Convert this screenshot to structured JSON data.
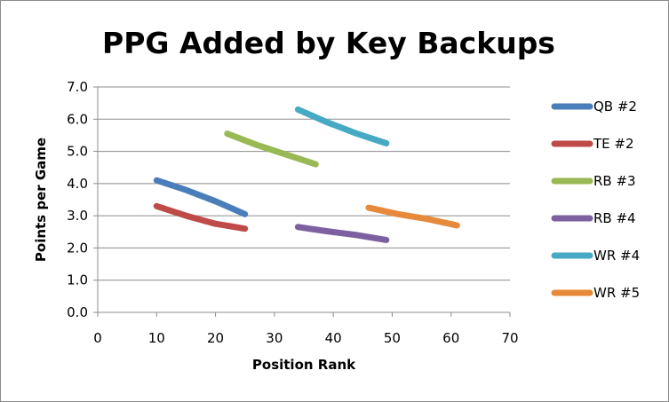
{
  "chart_data": {
    "type": "line",
    "title": "PPG Added by Key Backups",
    "xlabel": "Position Rank",
    "ylabel": "Points per Game",
    "xlim": [
      0,
      70
    ],
    "ylim": [
      0,
      7
    ],
    "x_ticks": [
      "0",
      "10",
      "20",
      "30",
      "40",
      "50",
      "60",
      "70"
    ],
    "y_ticks": [
      "0.0",
      "1.0",
      "2.0",
      "3.0",
      "4.0",
      "5.0",
      "6.0",
      "7.0"
    ],
    "grid": "horizontal",
    "legend_position": "right",
    "series": [
      {
        "name": "QB #2",
        "color": "#4a7ebb",
        "points": [
          [
            10,
            4.1
          ],
          [
            15,
            3.8
          ],
          [
            20,
            3.45
          ],
          [
            25,
            3.05
          ]
        ]
      },
      {
        "name": "TE #2",
        "color": "#be4b48",
        "points": [
          [
            10,
            3.3
          ],
          [
            15,
            3.0
          ],
          [
            20,
            2.75
          ],
          [
            25,
            2.6
          ]
        ]
      },
      {
        "name": "RB #3",
        "color": "#98b954",
        "points": [
          [
            22,
            5.55
          ],
          [
            27,
            5.2
          ],
          [
            32,
            4.9
          ],
          [
            37,
            4.6
          ]
        ]
      },
      {
        "name": "RB #4",
        "color": "#7d60a0",
        "points": [
          [
            34,
            2.65
          ],
          [
            39,
            2.52
          ],
          [
            44,
            2.4
          ],
          [
            49,
            2.25
          ]
        ]
      },
      {
        "name": "WR #4",
        "color": "#46aac5",
        "points": [
          [
            34,
            6.3
          ],
          [
            39,
            5.9
          ],
          [
            44,
            5.55
          ],
          [
            49,
            5.25
          ]
        ]
      },
      {
        "name": "WR #5",
        "color": "#e6893a",
        "points": [
          [
            46,
            3.25
          ],
          [
            51,
            3.05
          ],
          [
            56,
            2.9
          ],
          [
            61,
            2.7
          ]
        ]
      }
    ]
  }
}
